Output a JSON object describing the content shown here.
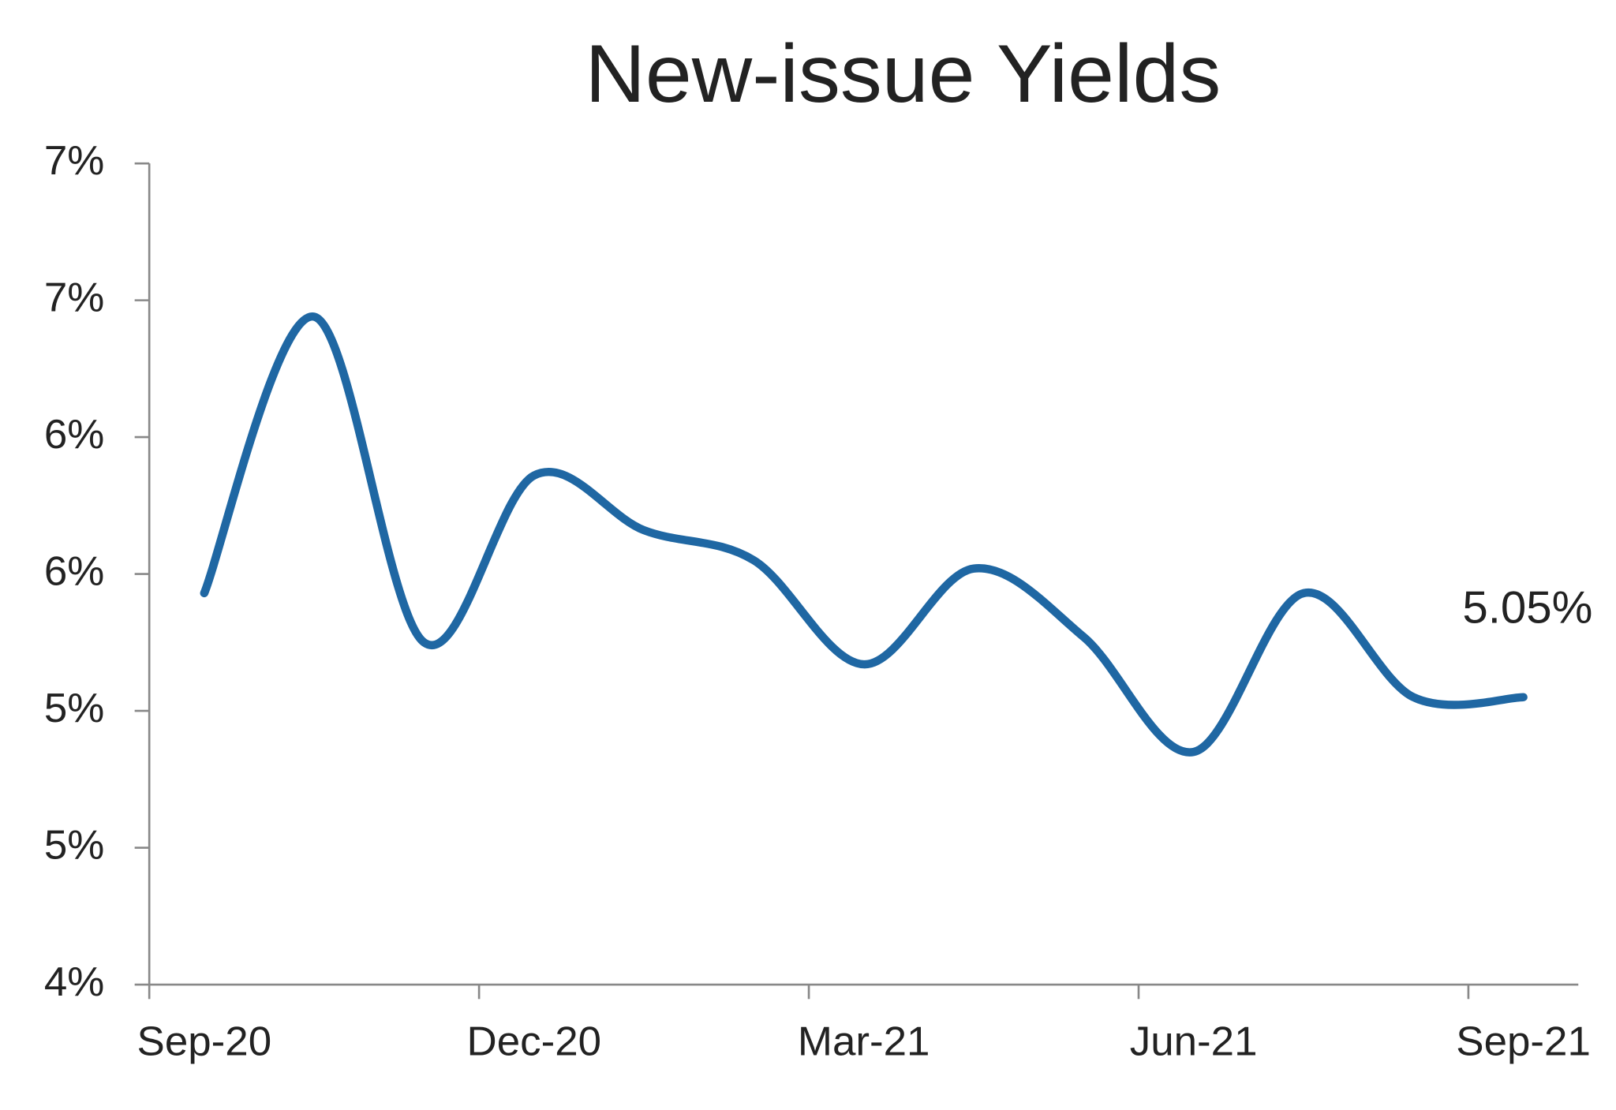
{
  "chart_data": {
    "type": "line",
    "title": "New-issue Yields",
    "categories": [
      "Sep-20",
      null,
      null,
      "Dec-20",
      null,
      null,
      "Mar-21",
      null,
      null,
      "Jun-21",
      null,
      null,
      "Sep-21"
    ],
    "series": [
      {
        "name": "New-issue Yield",
        "color": "#1f67a3",
        "values": [
          5.43,
          6.44,
          5.25,
          5.86,
          5.66,
          5.55,
          5.17,
          5.52,
          5.27,
          4.85,
          5.43,
          5.05,
          5.05
        ],
        "value_labels": [
          null,
          null,
          null,
          null,
          null,
          null,
          null,
          null,
          null,
          null,
          null,
          null,
          "5.05%"
        ]
      }
    ],
    "ylim": [
      4,
      7
    ],
    "yticks": [
      {
        "value": 4,
        "label": "4%"
      },
      {
        "value": 4.5,
        "label": "5%"
      },
      {
        "value": 5,
        "label": "5%"
      },
      {
        "value": 5.5,
        "label": "6%"
      },
      {
        "value": 6,
        "label": "6%"
      },
      {
        "value": 6.5,
        "label": "7%"
      },
      {
        "value": 7,
        "label": "7%"
      }
    ],
    "grid": false
  }
}
